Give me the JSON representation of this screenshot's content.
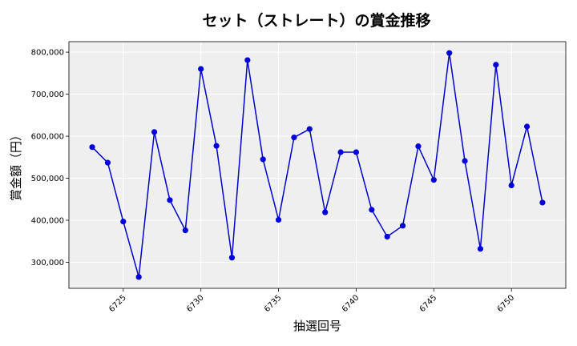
{
  "chart_data": {
    "type": "line",
    "title": "セット（ストレート）の賞金推移",
    "xlabel": "抽選回号",
    "ylabel": "賞金額（円）",
    "x": [
      6723,
      6724,
      6725,
      6726,
      6727,
      6728,
      6729,
      6730,
      6731,
      6732,
      6733,
      6734,
      6735,
      6736,
      6737,
      6738,
      6739,
      6740,
      6741,
      6742,
      6743,
      6744,
      6745,
      6746,
      6747,
      6748,
      6749,
      6750,
      6751,
      6752
    ],
    "series": [
      {
        "values": [
          574000,
          537000,
          397000,
          265000,
          610000,
          448000,
          376000,
          760000,
          577000,
          311000,
          781000,
          545000,
          401000,
          597000,
          617000,
          419000,
          562000,
          562000,
          425000,
          361000,
          387000,
          576000,
          496000,
          798000,
          541000,
          332000,
          770000,
          483000,
          623000,
          442000
        ]
      }
    ],
    "xticks": [
      "6725",
      "6730",
      "6735",
      "6740",
      "6745",
      "6750"
    ],
    "yticks": [
      "300,000",
      "400,000",
      "500,000",
      "600,000",
      "700,000",
      "800,000"
    ],
    "xlim": [
      6721.5,
      6753.5
    ],
    "ylim": [
      238000,
      825000
    ],
    "grid": true,
    "colors": {
      "line": "#0000cc",
      "marker": "#0000dd",
      "plot_bg": "#efefef",
      "grid": "#ffffff"
    }
  }
}
